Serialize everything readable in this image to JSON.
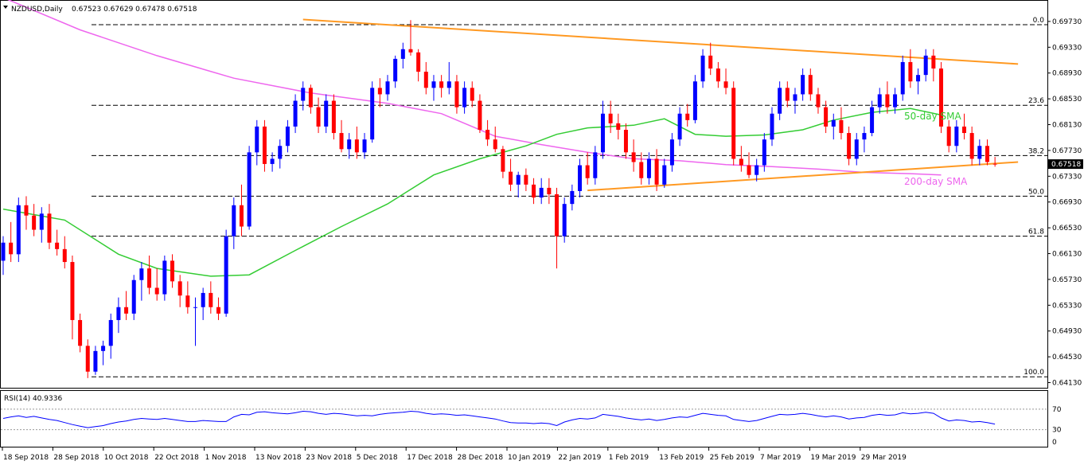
{
  "chart_data": {
    "type": "candlestick",
    "symbol_label": "NZDUSD,Daily",
    "ohlc_label": "0.67523 0.67629 0.67478 0.67518",
    "current_price": "0.67518",
    "y_ticks": [
      "0.69730",
      "0.69330",
      "0.68930",
      "0.68530",
      "0.68130",
      "0.67730",
      "0.67330",
      "0.66930",
      "0.66530",
      "0.66130",
      "0.65730",
      "0.65330",
      "0.64930",
      "0.64530",
      "0.64130"
    ],
    "ylim": [
      0.6405,
      0.7005
    ],
    "x_ticks": [
      "18 Sep 2018",
      "28 Sep 2018",
      "10 Oct 2018",
      "22 Oct 2018",
      "1 Nov 2018",
      "13 Nov 2018",
      "23 Nov 2018",
      "5 Dec 2018",
      "17 Dec 2018",
      "28 Dec 2018",
      "10 Jan 2019",
      "22 Jan 2019",
      "1 Feb 2019",
      "13 Feb 2019",
      "25 Feb 2019",
      "7 Mar 2019",
      "19 Mar 2019",
      "29 Mar 2019"
    ],
    "fib_levels": [
      {
        "label": "0.0",
        "value": 0.6968
      },
      {
        "label": "23.6",
        "value": 0.6843
      },
      {
        "label": "38.2",
        "value": 0.6765
      },
      {
        "label": "50.0",
        "value": 0.6702
      },
      {
        "label": "61.8",
        "value": 0.664
      },
      {
        "label": "100.0",
        "value": 0.6422
      }
    ],
    "trendlines": [
      {
        "name": "resistance",
        "from": [
          39,
          0.6976
        ],
        "to": [
          132,
          0.6907
        ]
      },
      {
        "name": "support",
        "from": [
          76,
          0.6711
        ],
        "to": [
          132,
          0.6755
        ]
      }
    ],
    "sma_labels": {
      "sma50": "50-day SMA",
      "sma200": "200-day SMA"
    },
    "colors": {
      "bull": "#0000ff",
      "bear": "#ff0000",
      "sma50": "#33cc33",
      "sma200": "#ee66ee",
      "trend": "#ff9922",
      "rsi": "#0000ff"
    },
    "sma50": [
      [
        0,
        0.6682
      ],
      [
        8,
        0.6665
      ],
      [
        15,
        0.6612
      ],
      [
        20,
        0.659
      ],
      [
        27,
        0.6578
      ],
      [
        32,
        0.658
      ],
      [
        38,
        0.6618
      ],
      [
        44,
        0.6655
      ],
      [
        50,
        0.669
      ],
      [
        56,
        0.6735
      ],
      [
        62,
        0.676
      ],
      [
        68,
        0.678
      ],
      [
        72,
        0.6798
      ],
      [
        76,
        0.6808
      ],
      [
        82,
        0.6812
      ],
      [
        86,
        0.6822
      ],
      [
        90,
        0.6798
      ],
      [
        94,
        0.6795
      ],
      [
        99,
        0.6797
      ],
      [
        104,
        0.6805
      ],
      [
        108,
        0.682
      ],
      [
        113,
        0.6832
      ],
      [
        118,
        0.6838
      ],
      [
        122,
        0.6828
      ]
    ],
    "sma200": [
      [
        0,
        0.701
      ],
      [
        10,
        0.696
      ],
      [
        20,
        0.692
      ],
      [
        30,
        0.6885
      ],
      [
        40,
        0.6862
      ],
      [
        50,
        0.6846
      ],
      [
        57,
        0.683
      ],
      [
        64,
        0.6795
      ],
      [
        70,
        0.6782
      ],
      [
        76,
        0.677
      ],
      [
        82,
        0.676
      ],
      [
        88,
        0.6757
      ],
      [
        94,
        0.6751
      ],
      [
        100,
        0.6748
      ],
      [
        106,
        0.6744
      ],
      [
        112,
        0.6739
      ],
      [
        118,
        0.6737
      ],
      [
        122,
        0.6735
      ]
    ],
    "candles": [
      [
        0.6602,
        0.664,
        0.658,
        0.663
      ],
      [
        0.663,
        0.6662,
        0.66,
        0.6612
      ],
      [
        0.6612,
        0.67,
        0.66,
        0.6688
      ],
      [
        0.6688,
        0.6702,
        0.665,
        0.6672
      ],
      [
        0.6672,
        0.669,
        0.664,
        0.665
      ],
      [
        0.665,
        0.6685,
        0.663,
        0.6675
      ],
      [
        0.6675,
        0.669,
        0.662,
        0.663
      ],
      [
        0.663,
        0.665,
        0.661,
        0.662
      ],
      [
        0.662,
        0.664,
        0.659,
        0.66
      ],
      [
        0.66,
        0.661,
        0.648,
        0.651
      ],
      [
        0.651,
        0.652,
        0.646,
        0.647
      ],
      [
        0.647,
        0.648,
        0.642,
        0.643
      ],
      [
        0.643,
        0.647,
        0.6425,
        0.6462
      ],
      [
        0.6462,
        0.6478,
        0.644,
        0.647
      ],
      [
        0.647,
        0.652,
        0.645,
        0.651
      ],
      [
        0.651,
        0.6545,
        0.649,
        0.653
      ],
      [
        0.653,
        0.6555,
        0.651,
        0.652
      ],
      [
        0.652,
        0.658,
        0.651,
        0.6572
      ],
      [
        0.6572,
        0.66,
        0.654,
        0.659
      ],
      [
        0.659,
        0.661,
        0.655,
        0.656
      ],
      [
        0.656,
        0.659,
        0.654,
        0.655
      ],
      [
        0.655,
        0.661,
        0.654,
        0.6602
      ],
      [
        0.6602,
        0.6612,
        0.656,
        0.657
      ],
      [
        0.657,
        0.658,
        0.653,
        0.6548
      ],
      [
        0.6548,
        0.657,
        0.652,
        0.653
      ],
      [
        0.653,
        0.6545,
        0.647,
        0.653
      ],
      [
        0.653,
        0.656,
        0.651,
        0.6552
      ],
      [
        0.6552,
        0.657,
        0.652,
        0.653
      ],
      [
        0.653,
        0.6545,
        0.651,
        0.652
      ],
      [
        0.652,
        0.665,
        0.6515,
        0.664
      ],
      [
        0.664,
        0.67,
        0.662,
        0.6688
      ],
      [
        0.6688,
        0.672,
        0.664,
        0.6655
      ],
      [
        0.6655,
        0.678,
        0.665,
        0.677
      ],
      [
        0.677,
        0.682,
        0.675,
        0.681
      ],
      [
        0.681,
        0.682,
        0.674,
        0.6752
      ],
      [
        0.6752,
        0.677,
        0.674,
        0.676
      ],
      [
        0.676,
        0.679,
        0.6745,
        0.678
      ],
      [
        0.678,
        0.682,
        0.677,
        0.681
      ],
      [
        0.681,
        0.686,
        0.68,
        0.685
      ],
      [
        0.685,
        0.688,
        0.6835,
        0.687
      ],
      [
        0.687,
        0.6875,
        0.683,
        0.684
      ],
      [
        0.684,
        0.6855,
        0.68,
        0.681
      ],
      [
        0.681,
        0.686,
        0.68,
        0.685
      ],
      [
        0.685,
        0.686,
        0.679,
        0.68
      ],
      [
        0.68,
        0.682,
        0.677,
        0.6775
      ],
      [
        0.6775,
        0.68,
        0.676,
        0.679
      ],
      [
        0.679,
        0.681,
        0.676,
        0.677
      ],
      [
        0.677,
        0.68,
        0.676,
        0.679
      ],
      [
        0.679,
        0.688,
        0.6785,
        0.687
      ],
      [
        0.687,
        0.6885,
        0.684,
        0.686
      ],
      [
        0.686,
        0.689,
        0.685,
        0.688
      ],
      [
        0.688,
        0.692,
        0.687,
        0.6915
      ],
      [
        0.6915,
        0.694,
        0.69,
        0.693
      ],
      [
        0.693,
        0.6975,
        0.692,
        0.6925
      ],
      [
        0.6925,
        0.693,
        0.688,
        0.6895
      ],
      [
        0.6895,
        0.691,
        0.686,
        0.687
      ],
      [
        0.687,
        0.689,
        0.685,
        0.688
      ],
      [
        0.688,
        0.689,
        0.6855,
        0.687
      ],
      [
        0.687,
        0.691,
        0.686,
        0.688
      ],
      [
        0.688,
        0.689,
        0.683,
        0.684
      ],
      [
        0.684,
        0.688,
        0.683,
        0.687
      ],
      [
        0.687,
        0.688,
        0.684,
        0.685
      ],
      [
        0.685,
        0.686,
        0.68,
        0.6805
      ],
      [
        0.6805,
        0.682,
        0.678,
        0.679
      ],
      [
        0.679,
        0.681,
        0.677,
        0.6775
      ],
      [
        0.6775,
        0.678,
        0.673,
        0.674
      ],
      [
        0.674,
        0.676,
        0.671,
        0.672
      ],
      [
        0.672,
        0.674,
        0.67,
        0.6735
      ],
      [
        0.6735,
        0.6745,
        0.671,
        0.672
      ],
      [
        0.672,
        0.673,
        0.669,
        0.67
      ],
      [
        0.67,
        0.673,
        0.669,
        0.6715
      ],
      [
        0.6715,
        0.673,
        0.669,
        0.6705
      ],
      [
        0.6705,
        0.6715,
        0.659,
        0.664
      ],
      [
        0.664,
        0.67,
        0.663,
        0.669
      ],
      [
        0.669,
        0.672,
        0.668,
        0.671
      ],
      [
        0.671,
        0.676,
        0.67,
        0.675
      ],
      [
        0.675,
        0.677,
        0.672,
        0.673
      ],
      [
        0.673,
        0.678,
        0.672,
        0.677
      ],
      [
        0.677,
        0.685,
        0.676,
        0.683
      ],
      [
        0.683,
        0.685,
        0.68,
        0.6815
      ],
      [
        0.6815,
        0.683,
        0.679,
        0.6805
      ],
      [
        0.6805,
        0.6815,
        0.676,
        0.677
      ],
      [
        0.677,
        0.679,
        0.674,
        0.6755
      ],
      [
        0.6755,
        0.677,
        0.672,
        0.673
      ],
      [
        0.673,
        0.677,
        0.672,
        0.676
      ],
      [
        0.676,
        0.6775,
        0.671,
        0.672
      ],
      [
        0.672,
        0.676,
        0.6715,
        0.675
      ],
      [
        0.675,
        0.68,
        0.674,
        0.679
      ],
      [
        0.679,
        0.684,
        0.678,
        0.683
      ],
      [
        0.683,
        0.6845,
        0.681,
        0.682
      ],
      [
        0.682,
        0.689,
        0.6815,
        0.688
      ],
      [
        0.688,
        0.693,
        0.687,
        0.692
      ],
      [
        0.692,
        0.694,
        0.689,
        0.69
      ],
      [
        0.69,
        0.691,
        0.687,
        0.688
      ],
      [
        0.688,
        0.69,
        0.686,
        0.687
      ],
      [
        0.687,
        0.688,
        0.675,
        0.676
      ],
      [
        0.676,
        0.678,
        0.674,
        0.675
      ],
      [
        0.675,
        0.677,
        0.673,
        0.6735
      ],
      [
        0.6735,
        0.676,
        0.6725,
        0.675
      ],
      [
        0.675,
        0.68,
        0.674,
        0.679
      ],
      [
        0.679,
        0.684,
        0.678,
        0.683
      ],
      [
        0.683,
        0.688,
        0.682,
        0.687
      ],
      [
        0.687,
        0.688,
        0.684,
        0.685
      ],
      [
        0.685,
        0.687,
        0.683,
        0.686
      ],
      [
        0.686,
        0.69,
        0.685,
        0.689
      ],
      [
        0.689,
        0.69,
        0.685,
        0.686
      ],
      [
        0.686,
        0.687,
        0.683,
        0.684
      ],
      [
        0.684,
        0.685,
        0.68,
        0.681
      ],
      [
        0.681,
        0.683,
        0.679,
        0.682
      ],
      [
        0.682,
        0.684,
        0.679,
        0.68
      ],
      [
        0.68,
        0.681,
        0.675,
        0.676
      ],
      [
        0.676,
        0.68,
        0.675,
        0.679
      ],
      [
        0.679,
        0.681,
        0.677,
        0.68
      ],
      [
        0.68,
        0.685,
        0.6795,
        0.684
      ],
      [
        0.684,
        0.687,
        0.683,
        0.686
      ],
      [
        0.686,
        0.688,
        0.683,
        0.684
      ],
      [
        0.684,
        0.687,
        0.683,
        0.686
      ],
      [
        0.686,
        0.692,
        0.685,
        0.691
      ],
      [
        0.691,
        0.693,
        0.687,
        0.688
      ],
      [
        0.688,
        0.69,
        0.686,
        0.689
      ],
      [
        0.689,
        0.693,
        0.688,
        0.692
      ],
      [
        0.692,
        0.693,
        0.688,
        0.69
      ],
      [
        0.69,
        0.691,
        0.68,
        0.681
      ],
      [
        0.681,
        0.682,
        0.677,
        0.678
      ],
      [
        0.678,
        0.682,
        0.677,
        0.681
      ],
      [
        0.681,
        0.683,
        0.679,
        0.68
      ],
      [
        0.68,
        0.681,
        0.675,
        0.676
      ],
      [
        0.676,
        0.679,
        0.675,
        0.678
      ],
      [
        0.678,
        0.679,
        0.675,
        0.6755
      ],
      [
        0.67523,
        0.67629,
        0.67478,
        0.67518
      ]
    ],
    "rsi": {
      "label": "RSI(14) 40.9336",
      "ticks": [
        "70",
        "30",
        "0"
      ],
      "values": [
        52,
        55,
        57,
        54,
        56,
        53,
        50,
        48,
        44,
        40,
        37,
        34,
        36,
        38,
        42,
        45,
        47,
        50,
        52,
        51,
        50,
        52,
        50,
        48,
        46,
        46,
        48,
        47,
        46,
        46,
        55,
        60,
        59,
        64,
        65,
        63,
        62,
        61,
        63,
        66,
        65,
        62,
        60,
        62,
        61,
        59,
        57,
        58,
        57,
        60,
        62,
        63,
        64,
        66,
        65,
        62,
        60,
        61,
        60,
        58,
        59,
        57,
        55,
        53,
        51,
        47,
        44,
        43,
        43,
        42,
        43,
        42,
        38,
        45,
        49,
        52,
        51,
        53,
        60,
        58,
        56,
        53,
        51,
        49,
        51,
        48,
        50,
        53,
        55,
        54,
        58,
        62,
        60,
        58,
        57,
        50,
        48,
        46,
        48,
        52,
        56,
        60,
        59,
        60,
        62,
        60,
        57,
        55,
        57,
        55,
        51,
        53,
        54,
        58,
        60,
        58,
        59,
        63,
        61,
        62,
        64,
        62,
        53,
        47,
        49,
        48,
        45,
        46,
        44,
        41
      ]
    }
  }
}
